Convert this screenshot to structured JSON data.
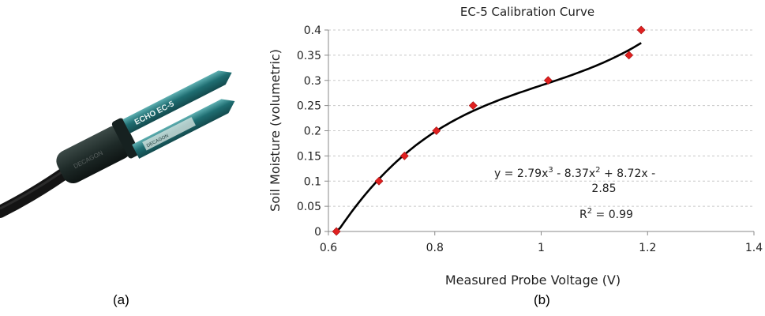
{
  "captions": {
    "left": "(a)",
    "right": "(b)"
  },
  "photo": {
    "name": "ECHO EC-5 soil moisture sensor",
    "brand_text": "ECHO EC-5",
    "colors": {
      "prongs": "#1f6e72",
      "prong_highlight": "#57a3a6",
      "body": "#1e2a28",
      "cable": "#141414"
    }
  },
  "chart_data": {
    "type": "scatter",
    "title": "EC-5 Calibration Curve",
    "xlabel": "Measured Probe Voltage (V)",
    "ylabel": "Soil Moisture (volumetric)",
    "xlim": [
      0.6,
      1.4
    ],
    "ylim": [
      0,
      0.4
    ],
    "xticks": [
      "0.6",
      "0.8",
      "1",
      "1.2",
      "1.4"
    ],
    "yticks": [
      "0",
      "0.05",
      "0.1",
      "0.15",
      "0.2",
      "0.25",
      "0.3",
      "0.35",
      "0.4"
    ],
    "grid": "horizontal dashed",
    "series": [
      {
        "marker": "diamond",
        "color": "#e02020",
        "x": [
          0.615,
          0.695,
          0.743,
          0.803,
          0.872,
          1.013,
          1.165,
          1.188
        ],
        "y": [
          0.0,
          0.1,
          0.15,
          0.2,
          0.25,
          0.3,
          0.35,
          0.4
        ]
      }
    ],
    "trendline": {
      "type": "cubic",
      "coefficients": [
        2.79,
        -8.37,
        8.72,
        -2.85
      ],
      "x_range": [
        0.615,
        1.188
      ],
      "color": "#000000"
    },
    "annotations": {
      "equation_line1": "y = 2.79x",
      "equation_line1_exp": "3",
      "equation_line1_mid": " - 8.37x",
      "equation_line1_exp2": "2",
      "equation_line1_end": " + 8.72x -",
      "equation_line2": "2.85",
      "r2_prefix": "R",
      "r2_exp": "2",
      "r2_suffix": " = 0.99"
    }
  }
}
